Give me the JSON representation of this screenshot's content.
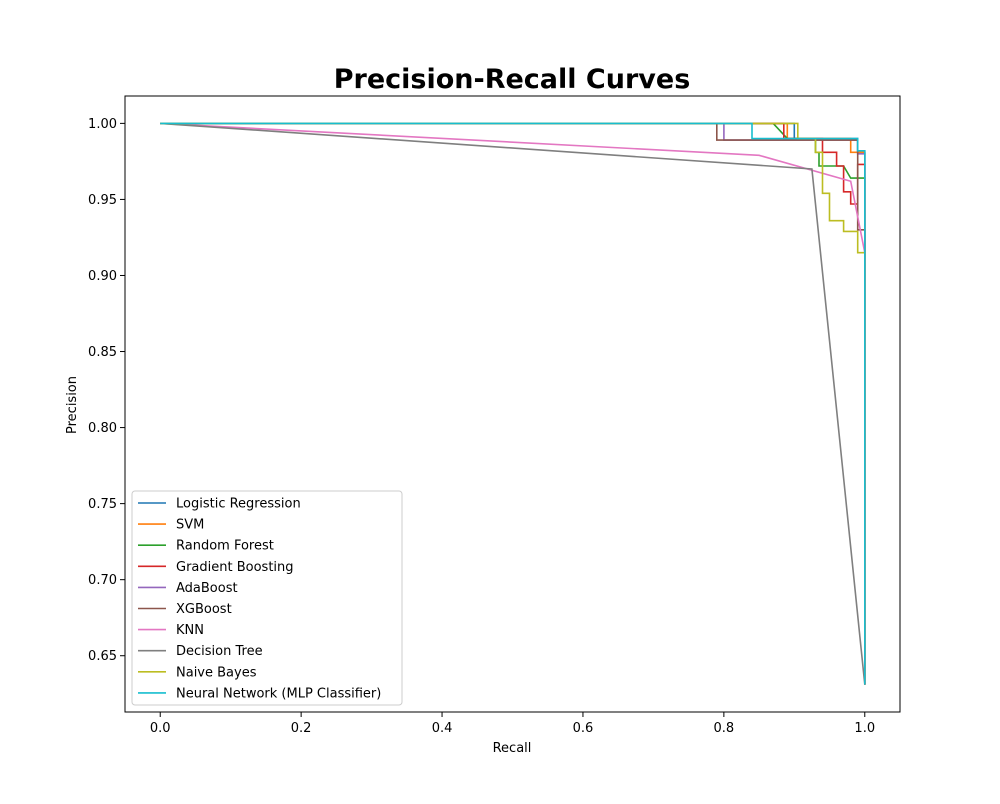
{
  "chart_data": {
    "type": "line",
    "title": "Precision-Recall Curves",
    "xlabel": "Recall",
    "ylabel": "Precision",
    "xlim": [
      -0.05,
      1.05
    ],
    "ylim": [
      0.613,
      1.018
    ],
    "xticks": [
      0.0,
      0.2,
      0.4,
      0.6,
      0.8,
      1.0
    ],
    "xtick_labels": [
      "0.0",
      "0.2",
      "0.4",
      "0.6",
      "0.8",
      "1.0"
    ],
    "yticks": [
      0.65,
      0.7,
      0.75,
      0.8,
      0.85,
      0.9,
      0.95,
      1.0
    ],
    "ytick_labels": [
      "0.65",
      "0.70",
      "0.75",
      "0.80",
      "0.85",
      "0.90",
      "0.95",
      "1.00"
    ],
    "grid": false,
    "legend_position": "lower-left",
    "series": [
      {
        "name": "Logistic Regression",
        "color": "#1f77b4",
        "x": [
          0.0,
          0.9,
          0.9,
          0.99,
          0.99,
          1.0,
          1.0
        ],
        "y": [
          1.0,
          1.0,
          0.99,
          0.99,
          0.981,
          0.981,
          0.631
        ]
      },
      {
        "name": "SVM",
        "color": "#ff7f0e",
        "x": [
          0.0,
          0.89,
          0.89,
          0.98,
          0.98,
          1.0,
          1.0
        ],
        "y": [
          1.0,
          1.0,
          0.99,
          0.99,
          0.981,
          0.981,
          0.631
        ]
      },
      {
        "name": "Random Forest",
        "color": "#2ca02c",
        "x": [
          0.0,
          0.87,
          0.89,
          0.93,
          0.93,
          0.935,
          0.935,
          0.97,
          0.98,
          1.0,
          1.0
        ],
        "y": [
          1.0,
          1.0,
          0.99,
          0.99,
          0.981,
          0.981,
          0.972,
          0.972,
          0.964,
          0.964,
          0.631
        ]
      },
      {
        "name": "Gradient Boosting",
        "color": "#d62728",
        "x": [
          0.0,
          0.885,
          0.885,
          0.94,
          0.94,
          0.96,
          0.96,
          0.97,
          0.97,
          0.98,
          0.98,
          0.99,
          0.99,
          1.0,
          1.0
        ],
        "y": [
          1.0,
          1.0,
          0.99,
          0.99,
          0.981,
          0.981,
          0.972,
          0.972,
          0.955,
          0.955,
          0.947,
          0.947,
          0.973,
          0.973,
          0.631
        ]
      },
      {
        "name": "AdaBoost",
        "color": "#9467bd",
        "x": [
          0.0,
          0.8,
          0.8,
          0.99,
          0.99,
          1.0,
          1.0
        ],
        "y": [
          1.0,
          1.0,
          0.989,
          0.989,
          0.98,
          0.98,
          0.631
        ]
      },
      {
        "name": "XGBoost",
        "color": "#8c564b",
        "x": [
          0.0,
          0.79,
          0.79,
          0.99,
          0.99,
          1.0,
          1.0
        ],
        "y": [
          1.0,
          1.0,
          0.989,
          0.989,
          0.93,
          0.93,
          0.631
        ]
      },
      {
        "name": "KNN",
        "color": "#e377c2",
        "x": [
          0.0,
          0.85,
          0.98,
          1.0,
          1.0
        ],
        "y": [
          1.0,
          0.979,
          0.962,
          0.915,
          0.631
        ]
      },
      {
        "name": "Decision Tree",
        "color": "#7f7f7f",
        "x": [
          0.0,
          0.925,
          1.0
        ],
        "y": [
          1.0,
          0.97,
          0.631
        ]
      },
      {
        "name": "Naive Bayes",
        "color": "#bcbd22",
        "x": [
          0.0,
          0.905,
          0.905,
          0.93,
          0.93,
          0.94,
          0.94,
          0.95,
          0.95,
          0.97,
          0.97,
          0.99,
          0.99,
          1.0,
          1.0
        ],
        "y": [
          1.0,
          1.0,
          0.99,
          0.99,
          0.981,
          0.981,
          0.954,
          0.954,
          0.936,
          0.936,
          0.929,
          0.929,
          0.915,
          0.915,
          0.631
        ]
      },
      {
        "name": "Neural Network (MLP Classifier)",
        "color": "#17becf",
        "x": [
          0.0,
          0.84,
          0.84,
          0.99,
          0.99,
          1.0,
          1.0
        ],
        "y": [
          1.0,
          1.0,
          0.99,
          0.99,
          0.982,
          0.982,
          0.631
        ]
      }
    ]
  }
}
